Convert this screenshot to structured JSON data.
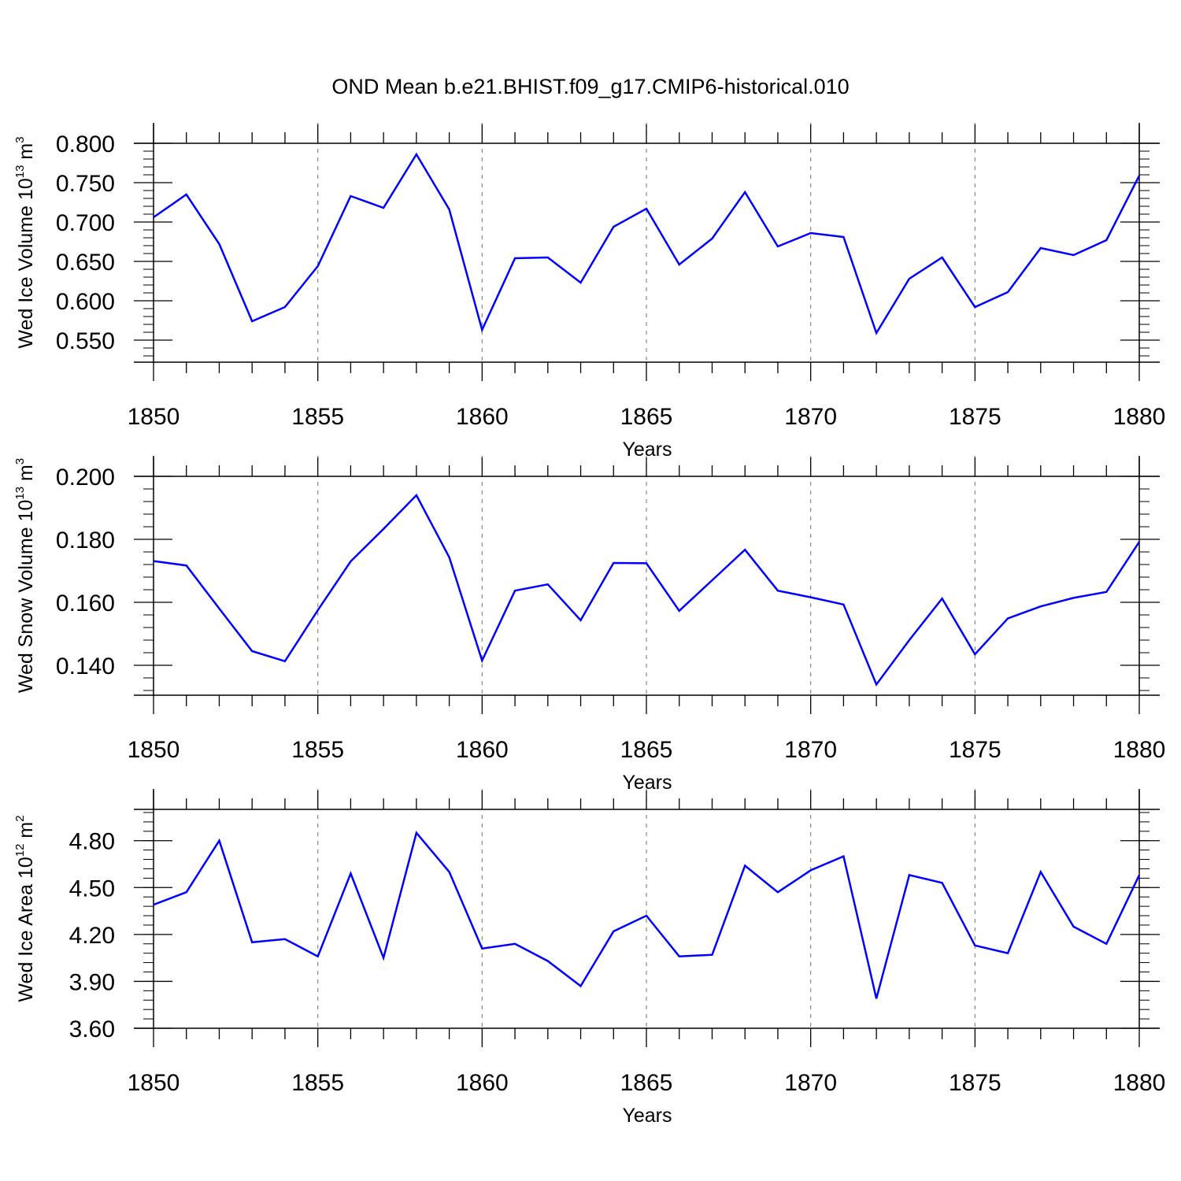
{
  "chart_data": {
    "type": "line",
    "title": "OND Mean b.e21.BHIST.f09_g17.CMIP6-historical.010",
    "line_color": "#0000ff",
    "x": [
      1850,
      1851,
      1852,
      1853,
      1854,
      1855,
      1856,
      1857,
      1858,
      1859,
      1860,
      1861,
      1862,
      1863,
      1864,
      1865,
      1866,
      1867,
      1868,
      1869,
      1870,
      1871,
      1872,
      1873,
      1874,
      1875,
      1876,
      1877,
      1878,
      1879,
      1880
    ],
    "xlim": [
      1850,
      1880
    ],
    "xticks": [
      1850,
      1855,
      1860,
      1865,
      1870,
      1875,
      1880
    ],
    "xtick_labels": [
      "1850",
      "1855",
      "1860",
      "1865",
      "1870",
      "1875",
      "1880"
    ],
    "panels": [
      {
        "ylabel": "Wed Ice Volume 10",
        "ylabel_exp": "13",
        "ylabel_unit": " m",
        "ylabel_unit_exp": "3",
        "xlabel": "Years",
        "ylim": [
          0.522,
          0.8
        ],
        "yticks": [
          0.55,
          0.6,
          0.65,
          0.7,
          0.75,
          0.8
        ],
        "ytick_labels": [
          "0.550",
          "0.600",
          "0.650",
          "0.700",
          "0.750",
          "0.800"
        ],
        "minor_step": 0.01,
        "values": [
          0.706,
          0.735,
          0.672,
          0.574,
          0.592,
          0.644,
          0.733,
          0.718,
          0.786,
          0.716,
          0.563,
          0.654,
          0.655,
          0.623,
          0.694,
          0.717,
          0.646,
          0.679,
          0.738,
          0.669,
          0.686,
          0.681,
          0.559,
          0.628,
          0.655,
          0.592,
          0.611,
          0.667,
          0.658,
          0.677,
          0.759
        ]
      },
      {
        "ylabel": "Wed Snow Volume 10",
        "ylabel_exp": "13",
        "ylabel_unit": " m",
        "ylabel_unit_exp": "3",
        "xlabel": "Years",
        "ylim": [
          0.1305,
          0.2
        ],
        "yticks": [
          0.14,
          0.16,
          0.18,
          0.2
        ],
        "ytick_labels": [
          "0.140",
          "0.160",
          "0.180",
          "0.200"
        ],
        "minor_step": 0.004,
        "values": [
          0.1731,
          0.1717,
          0.158,
          0.1445,
          0.1413,
          0.1575,
          0.173,
          0.1833,
          0.194,
          0.1743,
          0.1415,
          0.1637,
          0.1657,
          0.1543,
          0.1725,
          0.1724,
          0.1573,
          0.167,
          0.1767,
          0.1637,
          0.1616,
          0.1593,
          0.1339,
          0.148,
          0.1612,
          0.1435,
          0.1549,
          0.1587,
          0.1614,
          0.1633,
          0.1792
        ]
      },
      {
        "ylabel": "Wed Ice Area 10",
        "ylabel_exp": "12",
        "ylabel_unit": " m",
        "ylabel_unit_exp": "2",
        "xlabel": "Years",
        "ylim": [
          3.6,
          5.0
        ],
        "yticks": [
          3.6,
          3.9,
          4.2,
          4.5,
          4.8
        ],
        "ytick_labels": [
          "3.60",
          "3.90",
          "4.20",
          "4.50",
          "4.80"
        ],
        "minor_step": 0.06,
        "values": [
          4.39,
          4.47,
          4.8,
          4.15,
          4.17,
          4.06,
          4.59,
          4.05,
          4.85,
          4.6,
          4.11,
          4.14,
          4.03,
          3.87,
          4.22,
          4.32,
          4.06,
          4.07,
          4.64,
          4.47,
          4.61,
          4.7,
          3.79,
          4.58,
          4.53,
          4.13,
          4.08,
          4.6,
          4.25,
          4.14,
          4.58
        ]
      }
    ]
  }
}
